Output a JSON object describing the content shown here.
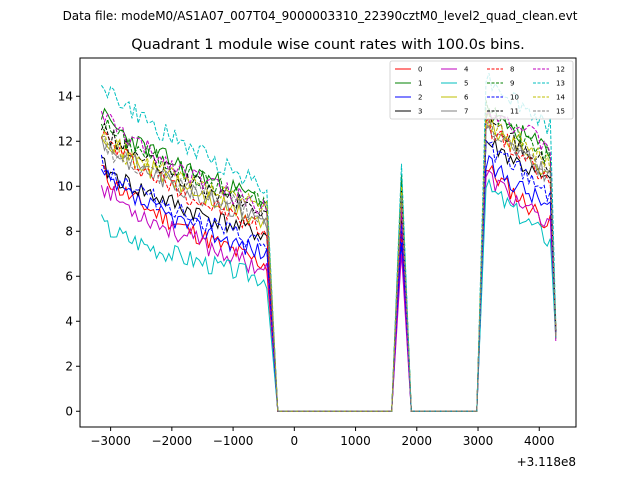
{
  "chart_data": {
    "type": "line",
    "suptitle": "Data file: modeM0/AS1A07_007T04_9000003310_22390cztM0_level2_quad_clean.evt",
    "title": "Quadrant 1 module wise count rates with 100.0s bins.",
    "xlabel": "",
    "ylabel": "",
    "x_offset_label": "+3.118e8",
    "xlim": [
      -3500,
      4600
    ],
    "ylim": [
      -0.7,
      15.7
    ],
    "xticks": [
      -3000,
      -2000,
      -1000,
      0,
      1000,
      2000,
      3000,
      4000
    ],
    "yticks": [
      0,
      2,
      4,
      6,
      8,
      10,
      12,
      14
    ],
    "xtick_labels": [
      "−3000",
      "−2000",
      "−1000",
      "0",
      "1000",
      "2000",
      "3000",
      "4000"
    ],
    "ytick_labels": [
      "0",
      "2",
      "4",
      "6",
      "8",
      "10",
      "12",
      "14"
    ],
    "legend_position": "top-right",
    "series": [
      {
        "name": "0",
        "color": "#ff0000",
        "style": "solid",
        "start": 10.8,
        "end": 6.5,
        "peak": 8.0,
        "seg2_start": 10.8,
        "seg2_end": 8.2,
        "seed": 11
      },
      {
        "name": "1",
        "color": "#008000",
        "style": "solid",
        "start": 13.3,
        "end": 9.3,
        "peak": 10.5,
        "seg2_start": 13.2,
        "seg2_end": 11.5,
        "seed": 23
      },
      {
        "name": "2",
        "color": "#0000ff",
        "style": "solid",
        "start": 10.6,
        "end": 7.0,
        "peak": 7.5,
        "seg2_start": 11.0,
        "seg2_end": 9.0,
        "seed": 37
      },
      {
        "name": "3",
        "color": "#000000",
        "style": "solid",
        "start": 11.0,
        "end": 7.8,
        "peak": 8.8,
        "seg2_start": 12.0,
        "seg2_end": 10.0,
        "seed": 41
      },
      {
        "name": "4",
        "color": "#bf00bf",
        "style": "solid",
        "start": 10.2,
        "end": 6.3,
        "peak": 7.0,
        "seg2_start": 10.5,
        "seg2_end": 8.0,
        "seed": 53
      },
      {
        "name": "5",
        "color": "#00bfbf",
        "style": "solid",
        "start": 8.4,
        "end": 5.9,
        "peak": 9.5,
        "seg2_start": 10.0,
        "seg2_end": 7.5,
        "seed": 67
      },
      {
        "name": "6",
        "color": "#bfbf00",
        "style": "solid",
        "start": 12.6,
        "end": 8.3,
        "peak": 9.8,
        "seg2_start": 12.8,
        "seg2_end": 10.5,
        "seed": 71
      },
      {
        "name": "7",
        "color": "#808080",
        "style": "solid",
        "start": 12.2,
        "end": 8.5,
        "peak": 9.6,
        "seg2_start": 12.5,
        "seg2_end": 10.4,
        "seed": 83
      },
      {
        "name": "8",
        "color": "#ff0000",
        "style": "dashed",
        "start": 12.5,
        "end": 8.0,
        "peak": 9.3,
        "seg2_start": 12.8,
        "seg2_end": 10.0,
        "seed": 97
      },
      {
        "name": "9",
        "color": "#008000",
        "style": "dashed",
        "start": 13.0,
        "end": 9.2,
        "peak": 10.2,
        "seg2_start": 13.5,
        "seg2_end": 11.2,
        "seed": 101
      },
      {
        "name": "10",
        "color": "#0000ff",
        "style": "dashed",
        "start": 11.2,
        "end": 7.3,
        "peak": 8.3,
        "seg2_start": 11.8,
        "seg2_end": 9.6,
        "seed": 113
      },
      {
        "name": "11",
        "color": "#000000",
        "style": "dashed",
        "start": 12.7,
        "end": 8.8,
        "peak": 9.9,
        "seg2_start": 13.0,
        "seg2_end": 10.8,
        "seed": 127
      },
      {
        "name": "12",
        "color": "#bf00bf",
        "style": "dashed",
        "start": 13.4,
        "end": 9.0,
        "peak": 9.0,
        "seg2_start": 13.6,
        "seg2_end": 11.6,
        "seed": 131
      },
      {
        "name": "13",
        "color": "#00bfbf",
        "style": "dashed",
        "start": 14.8,
        "end": 10.0,
        "peak": 11.0,
        "seg2_start": 14.8,
        "seg2_end": 12.5,
        "seed": 149
      },
      {
        "name": "14",
        "color": "#bfbf00",
        "style": "dashed",
        "start": 12.2,
        "end": 9.0,
        "peak": 10.0,
        "seg2_start": 13.0,
        "seg2_end": 11.0,
        "seed": 157
      },
      {
        "name": "15",
        "color": "#808080",
        "style": "dashed",
        "start": 12.0,
        "end": 8.7,
        "peak": 9.6,
        "seg2_start": 12.6,
        "seg2_end": 10.6,
        "seed": 163
      }
    ],
    "segments": {
      "seg1_x": [
        -3150,
        -450
      ],
      "drop_end_x": -270,
      "zero_until_x": 1590,
      "peak_x": 1750,
      "zero2_from_x": 1910,
      "zero2_until_x": 2980,
      "seg2_x": [
        3130,
        4220
      ],
      "final_x": 4270,
      "final_value": 3.5,
      "bin": 50
    }
  }
}
